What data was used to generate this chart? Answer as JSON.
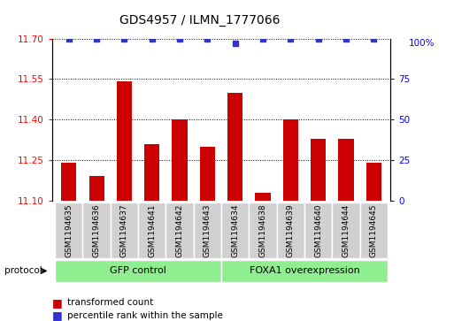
{
  "title": "GDS4957 / ILMN_1777066",
  "samples": [
    "GSM1194635",
    "GSM1194636",
    "GSM1194637",
    "GSM1194641",
    "GSM1194642",
    "GSM1194643",
    "GSM1194634",
    "GSM1194638",
    "GSM1194639",
    "GSM1194640",
    "GSM1194644",
    "GSM1194645"
  ],
  "transformed_counts": [
    11.24,
    11.19,
    11.54,
    11.31,
    11.4,
    11.3,
    11.5,
    11.13,
    11.4,
    11.33,
    11.33,
    11.24
  ],
  "percentile_ranks": [
    100,
    100,
    100,
    100,
    100,
    100,
    97,
    100,
    100,
    100,
    100,
    100
  ],
  "ylim_left": [
    11.1,
    11.7
  ],
  "yticks_left": [
    11.1,
    11.25,
    11.4,
    11.55,
    11.7
  ],
  "ylim_right": [
    0,
    100
  ],
  "yticks_right": [
    0,
    25,
    50,
    75
  ],
  "bar_color": "#cc0000",
  "dot_color": "#3333cc",
  "group1_label": "GFP control",
  "group2_label": "FOXA1 overexpression",
  "group1_indices": [
    0,
    1,
    2,
    3,
    4,
    5
  ],
  "group2_indices": [
    6,
    7,
    8,
    9,
    10,
    11
  ],
  "group_color": "#90ee90",
  "protocol_label": "protocol",
  "legend_bar_label": "transformed count",
  "legend_dot_label": "percentile rank within the sample",
  "bar_width": 0.55,
  "label_box_color": "#d0d0d0",
  "title_fontsize": 10,
  "tick_fontsize": 7.5,
  "label_fontsize": 6.5,
  "group_fontsize": 8
}
